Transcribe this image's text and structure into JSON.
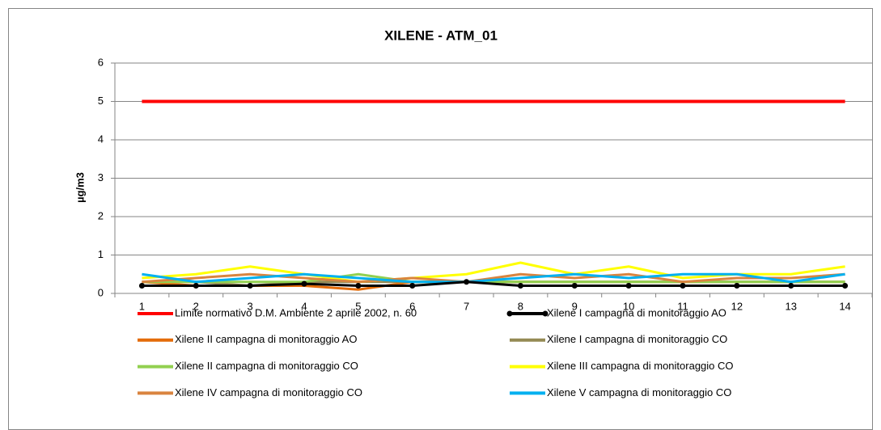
{
  "chart_data": {
    "type": "line",
    "title": "XILENE  - ATM_01",
    "y_label": "µg/m3",
    "categories": [
      1,
      2,
      3,
      4,
      5,
      6,
      7,
      8,
      9,
      10,
      11,
      12,
      13,
      14
    ],
    "ylim": [
      0,
      6
    ],
    "yticks": [
      0,
      1,
      2,
      3,
      4,
      5,
      6
    ],
    "grid": true,
    "legend": "bottom",
    "series": [
      {
        "name": "Limite normativo D.M. Ambiente 2 aprile 2002, n. 60",
        "color": "#ff0000",
        "values": [
          5,
          5,
          5,
          5,
          5,
          5,
          5,
          5,
          5,
          5,
          5,
          5,
          5,
          5
        ]
      },
      {
        "name": "Xilene I campagna di monitoraggio AO",
        "color": "#000000",
        "marker": "circle",
        "values": [
          0.2,
          0.2,
          0.2,
          0.25,
          0.2,
          0.2,
          0.3,
          0.2,
          0.2,
          0.2,
          0.2,
          0.2,
          0.2,
          0.2
        ]
      },
      {
        "name": "Xilene II campagna di monitoraggio AO",
        "color": "#e46c0a",
        "values": [
          0.3,
          0.2,
          0.2,
          0.2,
          0.1,
          0.3,
          0.3,
          0.3,
          0.3,
          0.3,
          0.3,
          0.3,
          0.3,
          0.3
        ]
      },
      {
        "name": "Xilene I campagna di monitoraggio CO",
        "color": "#948a54",
        "values": [
          0.3,
          0.3,
          0.2,
          0.3,
          0.3,
          0.3,
          0.3,
          0.3,
          0.3,
          0.3,
          0.3,
          0.3,
          0.3,
          0.3
        ]
      },
      {
        "name": "Xilene II campagna di monitoraggio CO",
        "color": "#92d050",
        "values": [
          0.3,
          0.3,
          0.3,
          0.3,
          0.5,
          0.3,
          0.3,
          0.3,
          0.3,
          0.3,
          0.3,
          0.3,
          0.3,
          0.3
        ]
      },
      {
        "name": "Xilene III campagna di monitoraggio CO",
        "color": "#ffff00",
        "values": [
          0.4,
          0.5,
          0.7,
          0.5,
          0.3,
          0.4,
          0.5,
          0.8,
          0.5,
          0.7,
          0.4,
          0.5,
          0.5,
          0.7
        ]
      },
      {
        "name": "Xilene IV campagna di monitoraggio CO",
        "color": "#d9843f",
        "values": [
          0.3,
          0.4,
          0.5,
          0.4,
          0.3,
          0.4,
          0.3,
          0.5,
          0.4,
          0.5,
          0.3,
          0.4,
          0.4,
          0.5
        ]
      },
      {
        "name": "Xilene V campagna di monitoraggio CO",
        "color": "#00b0f0",
        "values": [
          0.5,
          0.3,
          0.4,
          0.5,
          0.4,
          0.3,
          0.3,
          0.4,
          0.5,
          0.4,
          0.5,
          0.5,
          0.3,
          0.5
        ]
      }
    ]
  }
}
